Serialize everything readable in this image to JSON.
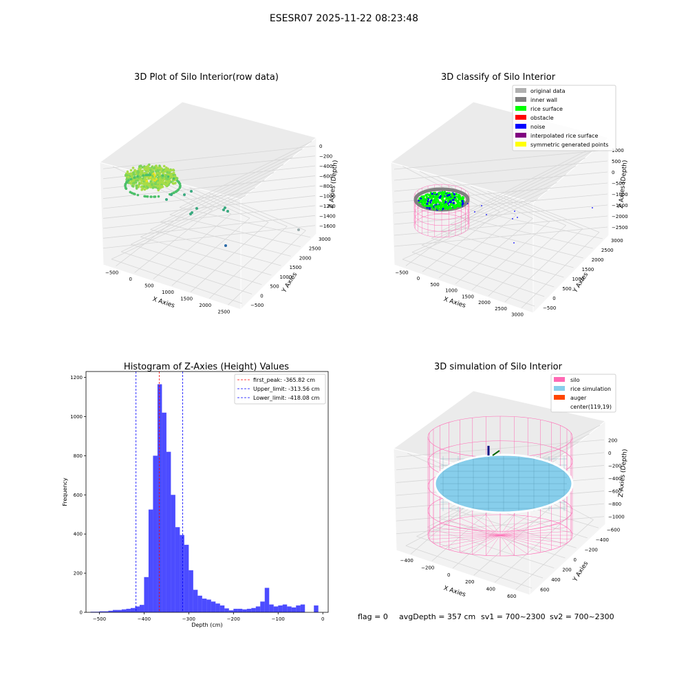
{
  "figure": {
    "suptitle": "ESESR07 2025-11-22 08:23:48",
    "footer": {
      "flag": "flag = 0",
      "avg_depth": "avgDepth = 357 cm",
      "sv1": "sv1 = 700~2300",
      "sv2": "sv2 = 700~2300"
    }
  },
  "panels": {
    "raw": {
      "title": "3D Plot of Silo Interior(row data)",
      "xlabel": "X Axies",
      "ylabel": "Y Axies",
      "zlabel": "Z Axies (Depth)",
      "x_ticks": [
        "−500",
        "0",
        "500",
        "1000",
        "1500",
        "2000",
        "2500"
      ],
      "y_ticks": [
        "−500",
        "0",
        "500",
        "1000",
        "1500",
        "2000",
        "2500",
        "3000"
      ],
      "z_ticks": [
        "0",
        "−200",
        "−400",
        "−600",
        "−800",
        "−1000",
        "−1200",
        "−1400",
        "−1600"
      ]
    },
    "classify": {
      "title": "3D classify of Silo Interior",
      "xlabel": "X Axies",
      "ylabel": "Y Axies",
      "zlabel": "Z Axies (Depth)",
      "x_ticks": [
        "−500",
        "0",
        "500",
        "1000",
        "1500",
        "2000",
        "2500",
        "3000"
      ],
      "y_ticks": [
        "−500",
        "0",
        "500",
        "1000",
        "1500",
        "2000",
        "2500",
        "3000"
      ],
      "z_ticks": [
        "1000",
        "500",
        "0",
        "−500",
        "−1000",
        "−1500",
        "−2000",
        "−2500"
      ],
      "legend": [
        {
          "label": "original data",
          "color": "#b0b0b0"
        },
        {
          "label": "inner wall",
          "color": "#808080"
        },
        {
          "label": "rice surface",
          "color": "#00ff00"
        },
        {
          "label": "obstacle",
          "color": "#ff0000"
        },
        {
          "label": "noise",
          "color": "#0000ff"
        },
        {
          "label": "interpolated rice surface",
          "color": "#800080"
        },
        {
          "label": "symmetric generated points",
          "color": "#ffff00"
        }
      ]
    },
    "simulation": {
      "title": "3D simulation of Silo Interior",
      "xlabel": "X Axies",
      "ylabel": "Y Axies",
      "zlabel": "Z Axies (Depth)",
      "x_ticks": [
        "−400",
        "−200",
        "0",
        "200",
        "400",
        "600"
      ],
      "y_ticks": [
        "600",
        "400",
        "200",
        "0",
        "−200",
        "−400",
        "−600"
      ],
      "z_ticks": [
        "200",
        "0",
        "−200",
        "−400",
        "−600",
        "−800",
        "−1000"
      ],
      "legend": [
        {
          "label": "silo",
          "color": "#ff69b4"
        },
        {
          "label": "rice simulation",
          "color": "#87ceeb"
        },
        {
          "label": "auger",
          "color": "#ff4500"
        },
        {
          "label": "center(119,19)",
          "color": ""
        }
      ]
    }
  },
  "chart_data": [
    {
      "type": "bar",
      "title": "Histogram of Z-Axies (Height) Values",
      "xlabel": "Depth (cm)",
      "ylabel": "Frequency",
      "xlim": [
        -530,
        12
      ],
      "ylim": [
        0,
        1230
      ],
      "x_ticks": [
        -500,
        -400,
        -300,
        -200,
        -100,
        0
      ],
      "y_ticks": [
        0,
        200,
        400,
        600,
        800,
        1000,
        1200
      ],
      "bar_color": "#0000ff",
      "bin_width": 10,
      "bin_left_edges": [
        -520,
        -510,
        -500,
        -490,
        -480,
        -470,
        -460,
        -450,
        -440,
        -430,
        -420,
        -410,
        -400,
        -390,
        -380,
        -370,
        -360,
        -350,
        -340,
        -330,
        -320,
        -310,
        -300,
        -290,
        -280,
        -270,
        -260,
        -250,
        -240,
        -230,
        -220,
        -210,
        -200,
        -190,
        -180,
        -170,
        -160,
        -150,
        -140,
        -130,
        -120,
        -110,
        -100,
        -90,
        -80,
        -70,
        -60,
        -50,
        -40,
        -30,
        -20,
        -10
      ],
      "values": [
        3,
        3,
        5,
        5,
        8,
        12,
        12,
        15,
        18,
        22,
        30,
        38,
        180,
        525,
        800,
        1165,
        1020,
        820,
        600,
        435,
        395,
        345,
        215,
        115,
        85,
        70,
        65,
        55,
        45,
        35,
        20,
        10,
        18,
        18,
        15,
        18,
        22,
        30,
        55,
        125,
        40,
        30,
        35,
        40,
        30,
        25,
        35,
        40,
        0,
        0,
        35,
        0
      ],
      "vlines": [
        {
          "x": -365.82,
          "label": "first_peak: -365.82 cm",
          "color": "#ff0000"
        },
        {
          "x": -313.56,
          "label": "Upper_limit: -313.56 cm",
          "color": "#0000ff"
        },
        {
          "x": -418.08,
          "label": "Lower_limit: -418.08 cm",
          "color": "#0000ff"
        }
      ],
      "legend_position": "top-right"
    }
  ]
}
